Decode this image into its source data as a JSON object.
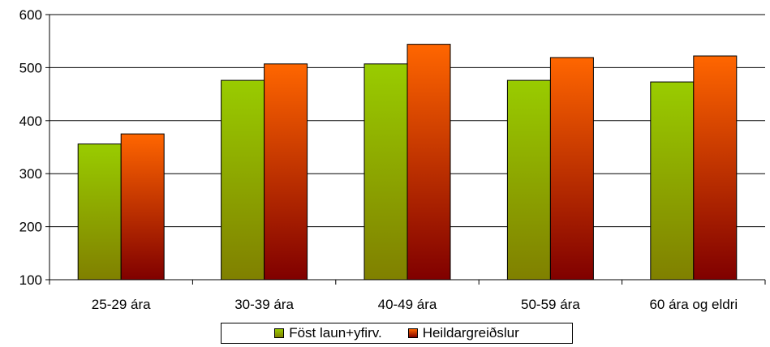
{
  "chart_data": {
    "type": "bar",
    "title": "",
    "xlabel": "",
    "ylabel": "",
    "categories": [
      "25-29 ára",
      "30-39 ára",
      "40-49 ára",
      "50-59 ára",
      "60 ára og eldri"
    ],
    "series": [
      {
        "name": "Föst laun+yfirv.",
        "values": [
          356,
          476,
          507,
          476,
          473
        ],
        "color_top": "#99cc00",
        "color_bottom": "#808000"
      },
      {
        "name": "Heildargreiðslur",
        "values": [
          375,
          507,
          544,
          519,
          522
        ],
        "color_top": "#ff6600",
        "color_bottom": "#800000"
      }
    ],
    "ylim": [
      100,
      600
    ],
    "yticks": [
      "100",
      "200",
      "300",
      "400",
      "500",
      "600"
    ],
    "grid": true,
    "legend_position": "bottom"
  }
}
